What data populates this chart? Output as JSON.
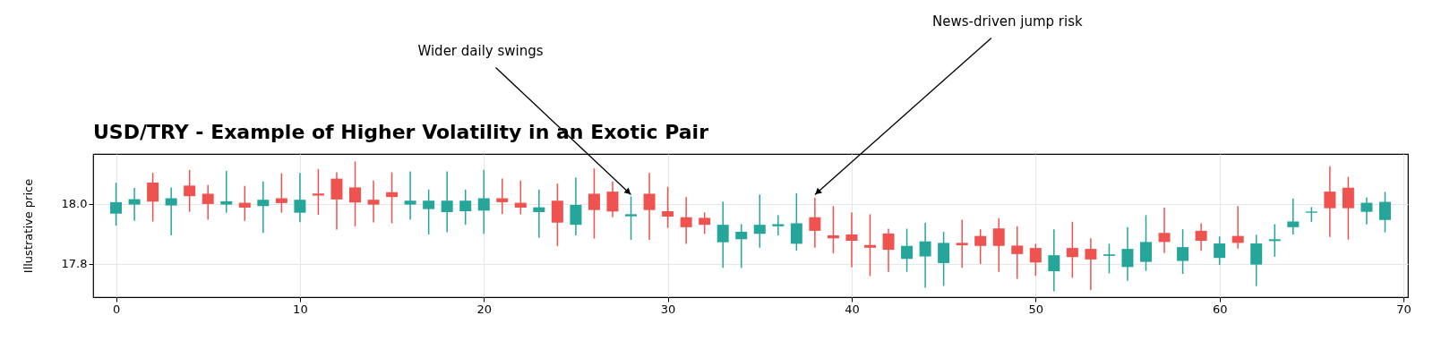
{
  "chart_data": {
    "type": "candlestick",
    "title": "USD/TRY - Example of Higher Volatility in an Exotic Pair",
    "ylabel": "Illustrative price",
    "x": [
      0,
      1,
      2,
      3,
      4,
      5,
      6,
      7,
      8,
      9,
      10,
      11,
      12,
      13,
      14,
      15,
      16,
      17,
      18,
      19,
      20,
      21,
      22,
      23,
      24,
      25,
      26,
      27,
      28,
      29,
      30,
      31,
      32,
      33,
      34,
      35,
      36,
      37,
      38,
      39,
      40,
      41,
      42,
      43,
      44,
      45,
      46,
      47,
      48,
      49,
      50,
      51,
      52,
      53,
      54,
      55,
      56,
      57,
      58,
      59,
      60,
      61,
      62,
      63,
      64,
      65,
      66,
      67,
      68,
      69
    ],
    "ohlc": [
      [
        17.967,
        18.069,
        17.927,
        18.005
      ],
      [
        17.997,
        18.052,
        17.943,
        18.015
      ],
      [
        18.07,
        18.102,
        17.941,
        18.007
      ],
      [
        17.994,
        18.054,
        17.895,
        18.018
      ],
      [
        18.06,
        18.112,
        17.973,
        18.025
      ],
      [
        18.033,
        18.062,
        17.947,
        17.999
      ],
      [
        17.997,
        18.109,
        17.97,
        18.008
      ],
      [
        18.003,
        18.059,
        17.943,
        17.987
      ],
      [
        17.992,
        18.074,
        17.903,
        18.013
      ],
      [
        18.018,
        18.101,
        17.97,
        18.002
      ],
      [
        17.97,
        18.102,
        17.939,
        18.013
      ],
      [
        18.034,
        18.115,
        17.963,
        18.027
      ],
      [
        18.083,
        18.104,
        17.914,
        18.014
      ],
      [
        18.054,
        18.14,
        17.925,
        18.004
      ],
      [
        18.013,
        18.077,
        17.938,
        17.997
      ],
      [
        18.038,
        18.104,
        17.935,
        18.022
      ],
      [
        17.997,
        18.107,
        17.947,
        18.01
      ],
      [
        17.982,
        18.047,
        17.898,
        18.01
      ],
      [
        17.972,
        18.107,
        17.905,
        18.01
      ],
      [
        17.975,
        18.047,
        17.93,
        18.01
      ],
      [
        17.977,
        18.112,
        17.9,
        18.018
      ],
      [
        18.018,
        18.083,
        17.965,
        18.005
      ],
      [
        18.003,
        18.077,
        17.965,
        17.987
      ],
      [
        17.972,
        18.047,
        17.887,
        17.988
      ],
      [
        18.01,
        18.067,
        17.859,
        17.937
      ],
      [
        17.93,
        18.087,
        17.895,
        17.996
      ],
      [
        18.033,
        18.117,
        17.884,
        17.979
      ],
      [
        18.04,
        18.074,
        17.955,
        17.974
      ],
      [
        17.958,
        18.024,
        17.88,
        17.965
      ],
      [
        18.033,
        18.102,
        17.88,
        17.979
      ],
      [
        17.975,
        18.056,
        17.92,
        17.957
      ],
      [
        17.955,
        18.022,
        17.867,
        17.922
      ],
      [
        17.953,
        17.971,
        17.9,
        17.93
      ],
      [
        17.872,
        18.007,
        17.787,
        17.93
      ],
      [
        17.882,
        17.932,
        17.787,
        17.907
      ],
      [
        17.9,
        18.03,
        17.854,
        17.93
      ],
      [
        17.925,
        17.962,
        17.895,
        17.932
      ],
      [
        17.867,
        18.035,
        17.844,
        17.935
      ],
      [
        17.955,
        18.02,
        17.854,
        17.91
      ],
      [
        17.895,
        17.992,
        17.835,
        17.885
      ],
      [
        17.898,
        17.971,
        17.789,
        17.877
      ],
      [
        17.863,
        17.965,
        17.76,
        17.854
      ],
      [
        17.901,
        17.917,
        17.774,
        17.847
      ],
      [
        17.817,
        17.917,
        17.774,
        17.86
      ],
      [
        17.825,
        17.937,
        17.721,
        17.875
      ],
      [
        17.803,
        17.907,
        17.727,
        17.87
      ],
      [
        17.87,
        17.947,
        17.787,
        17.862
      ],
      [
        17.893,
        17.915,
        17.8,
        17.86
      ],
      [
        17.918,
        17.952,
        17.774,
        17.86
      ],
      [
        17.861,
        17.925,
        17.751,
        17.833
      ],
      [
        17.853,
        17.867,
        17.761,
        17.805
      ],
      [
        17.776,
        17.915,
        17.709,
        17.829
      ],
      [
        17.853,
        17.94,
        17.754,
        17.823
      ],
      [
        17.85,
        17.885,
        17.714,
        17.815
      ],
      [
        17.827,
        17.867,
        17.769,
        17.832
      ],
      [
        17.79,
        17.922,
        17.744,
        17.85
      ],
      [
        17.807,
        17.962,
        17.777,
        17.873
      ],
      [
        17.903,
        17.987,
        17.836,
        17.873
      ],
      [
        17.81,
        17.915,
        17.767,
        17.856
      ],
      [
        17.91,
        17.935,
        17.844,
        17.877
      ],
      [
        17.82,
        17.891,
        17.797,
        17.868
      ],
      [
        17.893,
        17.992,
        17.851,
        17.87
      ],
      [
        17.798,
        17.897,
        17.727,
        17.868
      ],
      [
        17.876,
        17.932,
        17.824,
        17.882
      ],
      [
        17.922,
        18.017,
        17.898,
        17.941
      ],
      [
        17.97,
        17.989,
        17.94,
        17.974
      ],
      [
        18.04,
        18.124,
        17.89,
        17.985
      ],
      [
        18.053,
        18.089,
        17.881,
        17.985
      ],
      [
        17.973,
        18.02,
        17.931,
        18.003
      ],
      [
        17.946,
        18.039,
        17.905,
        18.006
      ]
    ],
    "colors": [
      "#26a69a",
      "#26a69a",
      "#ef5350",
      "#26a69a",
      "#ef5350",
      "#ef5350",
      "#26a69a",
      "#ef5350",
      "#26a69a",
      "#ef5350",
      "#26a69a",
      "#ef5350",
      "#ef5350",
      "#ef5350",
      "#ef5350",
      "#ef5350",
      "#26a69a",
      "#26a69a",
      "#26a69a",
      "#26a69a",
      "#26a69a",
      "#ef5350",
      "#ef5350",
      "#26a69a",
      "#ef5350",
      "#26a69a",
      "#ef5350",
      "#ef5350",
      "#26a69a",
      "#ef5350",
      "#ef5350",
      "#ef5350",
      "#ef5350",
      "#26a69a",
      "#26a69a",
      "#26a69a",
      "#26a69a",
      "#26a69a",
      "#ef5350",
      "#ef5350",
      "#ef5350",
      "#ef5350",
      "#ef5350",
      "#26a69a",
      "#26a69a",
      "#26a69a",
      "#ef5350",
      "#ef5350",
      "#ef5350",
      "#ef5350",
      "#ef5350",
      "#26a69a",
      "#ef5350",
      "#ef5350",
      "#26a69a",
      "#26a69a",
      "#26a69a",
      "#ef5350",
      "#26a69a",
      "#ef5350",
      "#26a69a",
      "#ef5350",
      "#26a69a",
      "#26a69a",
      "#26a69a",
      "#26a69a",
      "#ef5350",
      "#ef5350",
      "#26a69a",
      "#26a69a"
    ],
    "xlim": [
      -1,
      70
    ],
    "xticks": [
      0,
      10,
      20,
      30,
      40,
      50,
      60,
      70
    ],
    "ylim": [
      17.69,
      18.165
    ],
    "yticks": [
      17.8,
      {
        "value": 18,
        "label": "18.0"
      }
    ],
    "grid": true,
    "annotations": [
      {
        "text": "Wider daily swings",
        "x": 28,
        "y": 18.03
      },
      {
        "text": "News-driven jump risk",
        "x": 38,
        "y": 18.03
      }
    ]
  }
}
